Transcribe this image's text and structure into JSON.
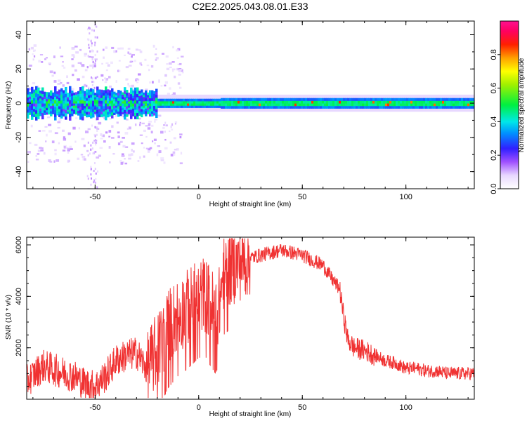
{
  "figure": {
    "title": "C2E2.2025.043.08.01.E33"
  },
  "chart_data": [
    {
      "type": "heatmap",
      "title": "C2E2.2025.043.08.01.E33",
      "xlabel": "Height of straight line (km)",
      "ylabel": "Frequency (Hz)",
      "xlim": [
        -83,
        133
      ],
      "ylim": [
        -50,
        48
      ],
      "x_ticks": [
        -50,
        0,
        50,
        100
      ],
      "y_ticks": [
        -40,
        -20,
        0,
        20,
        40
      ],
      "grid": false,
      "colorbar": {
        "label": "Normalized spectral amplitude",
        "range": [
          0,
          1
        ],
        "ticks": [
          0.0,
          0.2,
          0.4,
          0.6,
          0.8
        ],
        "tick_labels": [
          "0.0",
          "0.2",
          "0.4",
          "0.6",
          "0.8"
        ],
        "colormap": "rainbow: white-lavender → violet → blue → cyan → green → yellow → orange → red → magenta"
      },
      "description_values": {
        "center_frequency_hz": 0,
        "band_halfwidth_hz": 3
      }
    },
    {
      "type": "line",
      "title": "",
      "xlabel": "Height of straight line (km)",
      "ylabel": "SNR (10 * v/v)",
      "xlim": [
        -83,
        133
      ],
      "ylim": [
        0,
        6300
      ],
      "x_ticks": [
        -50,
        0,
        50,
        100
      ],
      "y_ticks": [
        2000,
        4000,
        6000
      ],
      "grid": false,
      "series": [
        {
          "color": "#f03232",
          "x": [
            -83,
            -75,
            -68,
            -60,
            -55,
            -50,
            -45,
            -40,
            -35,
            -30,
            -25,
            -20,
            -15,
            -10,
            -5,
            0,
            3,
            5,
            8,
            10,
            12,
            15,
            20,
            25,
            30,
            35,
            40,
            45,
            50,
            55,
            60,
            65,
            68,
            70,
            72,
            75,
            80,
            85,
            90,
            95,
            100,
            105,
            110,
            115,
            120,
            125,
            133
          ],
          "values": [
            700,
            1300,
            1100,
            900,
            600,
            500,
            900,
            1500,
            1700,
            1800,
            1200,
            1900,
            2800,
            3300,
            3600,
            4000,
            4100,
            3800,
            3400,
            3700,
            4900,
            5100,
            5300,
            5500,
            5600,
            5700,
            5800,
            5700,
            5600,
            5400,
            5200,
            4600,
            4300,
            3200,
            2300,
            2000,
            1900,
            1700,
            1500,
            1400,
            1200,
            1200,
            1100,
            1100,
            1000,
            1000,
            1000
          ]
        }
      ]
    }
  ]
}
